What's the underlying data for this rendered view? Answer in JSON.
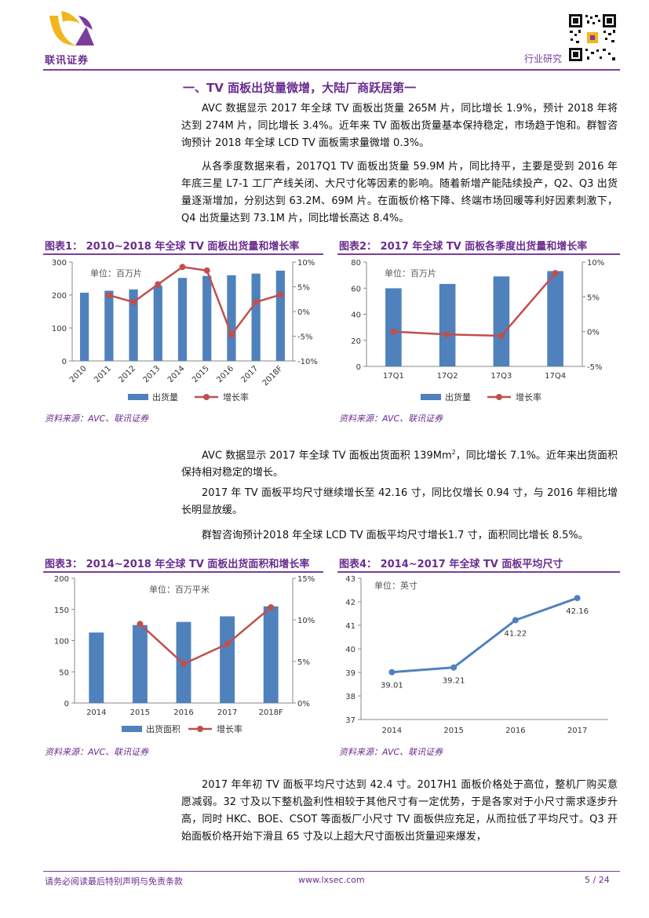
{
  "header": {
    "company_name": "联讯证券",
    "report_type": "行业研究",
    "colors": {
      "brand_purple": "#6a2c8f",
      "logo_yellow": "#f2b51c",
      "bar_blue": "#4f81bd",
      "line_red": "#c0504d"
    }
  },
  "section_title": "一、TV 面板出货量微增，大陆厂商跃居第一",
  "paragraphs": {
    "p1": "AVC 数据显示 2017 年全球 TV 面板出货量 265M 片，同比增长 1.9%，预计 2018 年将达到 274M 片，同比增长 3.4%。近年来 TV 面板出货量基本保持稳定，市场趋于饱和。群智咨询预计 2018 年全球 LCD TV 面板需求量微增 0.3%。",
    "p2": "从各季度数据来看，2017Q1 TV 面板出货量 59.9M 片，同比持平，主要是受到 2016 年年底三星 L7-1 工厂产线关闭、大尺寸化等因素的影响。随着新增产能陆续投产，Q2、Q3 出货量逐渐增加，分别达到 63.2M、69M 片。在面板价格下降、终端市场回暖等利好因素刺激下，Q4 出货量达到 73.1M 片，同比增长高达 8.4%。",
    "p3_before": "AVC 数据显示 2017 年全球 TV 面板出货面积 139Mm",
    "p3_sup": "2",
    "p3_after": "，同比增长 7.1%。近年来出货面积保持相对稳定的增长。",
    "p4": "2017 年 TV 面板平均尺寸继续增长至 42.16 寸，同比仅增长 0.94 寸，与 2016 年相比增长明显放缓。",
    "p5": "群智咨询预计2018 年全球 LCD TV 面板平均尺寸增长1.7 寸，面积同比增长 8.5%。",
    "p6": "2017 年年初 TV 面板平均尺寸达到 42.4 寸。2017H1 面板价格处于高位，整机厂购买意愿减弱。32 寸及以下整机盈利性相较于其他尺寸有一定优势，于是各家对于小尺寸需求逐步升高，同时 HKC、BOE、CSOT 等面板厂小尺寸 TV 面板供应充足，从而拉低了平均尺寸。Q3 开始面板价格开始下滑且 65 寸及以上超大尺寸面板出货量迎来爆发，"
  },
  "figures": {
    "fig1": {
      "label": "图表1：",
      "title": "2010~2018 年全球 TV 面板出货量和增长率",
      "source": "资料来源：AVC、联讯证券"
    },
    "fig2": {
      "label": "图表2：",
      "title": "2017 年全球 TV 面板各季度出货量和增长率",
      "source": "资料来源：AVC、联讯证券"
    },
    "fig3": {
      "label": "图表3：",
      "title": "2014~2018 年全球 TV 面板出货面积和增长率",
      "source": "资料来源：AVC、联讯证券"
    },
    "fig4": {
      "label": "图表4：",
      "title": "2014~2017 年全球 TV 面板平均尺寸",
      "source": "资料来源：AVC、联讯证券"
    }
  },
  "chart_data": [
    {
      "type": "bar",
      "id": "fig1",
      "unit_note": "单位：百万片",
      "categories": [
        "2010",
        "2011",
        "2012",
        "2013",
        "2014",
        "2015",
        "2016",
        "2017",
        "2018F"
      ],
      "series": [
        {
          "name": "出货量",
          "kind": "bar",
          "axis": "left",
          "values": [
            207,
            213,
            217,
            228,
            252,
            258,
            260,
            265,
            274
          ]
        },
        {
          "name": "增长率",
          "kind": "line",
          "axis": "right",
          "values": [
            null,
            3.3,
            1.9,
            5.5,
            9.0,
            8.3,
            -4.7,
            1.9,
            3.4
          ]
        }
      ],
      "ylim_left": [
        0,
        300
      ],
      "yticks_left": [
        0,
        100,
        200,
        300
      ],
      "ylim_right": [
        -10,
        10
      ],
      "yticks_right": [
        "-10%",
        "-5%",
        "0%",
        "5%",
        "10%"
      ]
    },
    {
      "type": "bar",
      "id": "fig2",
      "unit_note": "单位：百万片",
      "categories": [
        "17Q1",
        "17Q2",
        "17Q3",
        "17Q4"
      ],
      "series": [
        {
          "name": "出货量",
          "kind": "bar",
          "axis": "left",
          "values": [
            59.9,
            63.2,
            69,
            73.1
          ]
        },
        {
          "name": "增长率",
          "kind": "line",
          "axis": "right",
          "values": [
            0,
            -0.4,
            -0.6,
            8.4
          ]
        }
      ],
      "ylim_left": [
        0,
        80
      ],
      "yticks_left": [
        0,
        20,
        40,
        60,
        80
      ],
      "ylim_right": [
        -5,
        10
      ],
      "yticks_right": [
        "-5%",
        "0%",
        "5%",
        "10%"
      ]
    },
    {
      "type": "bar",
      "id": "fig3",
      "unit_note": "单位：百万平米",
      "categories": [
        "2014",
        "2015",
        "2016",
        "2017",
        "2018F"
      ],
      "series": [
        {
          "name": "出货面积",
          "kind": "bar",
          "axis": "left",
          "values": [
            113,
            125,
            130,
            139,
            155
          ]
        },
        {
          "name": "增长率",
          "kind": "line",
          "axis": "right",
          "values": [
            null,
            9.5,
            4.7,
            7.1,
            11.5
          ]
        }
      ],
      "ylim_left": [
        0,
        200
      ],
      "yticks_left": [
        0,
        50,
        100,
        150,
        200
      ],
      "ylim_right": [
        0,
        15
      ],
      "yticks_right": [
        "0%",
        "5%",
        "10%",
        "15%"
      ]
    },
    {
      "type": "line",
      "id": "fig4",
      "unit_note": "单位：英寸",
      "categories": [
        "2014",
        "2015",
        "2016",
        "2017"
      ],
      "values": [
        39.01,
        39.21,
        41.22,
        42.16
      ],
      "data_labels": [
        "39.01",
        "39.21",
        "41.22",
        "42.16"
      ],
      "ylim": [
        37,
        43
      ],
      "yticks": [
        37,
        38,
        39,
        40,
        41,
        42,
        43
      ]
    }
  ],
  "footer": {
    "disclaimer": "请务必阅读最后特别声明与免责条款",
    "website": "www.lxsec.com",
    "page": "5 / 24"
  }
}
